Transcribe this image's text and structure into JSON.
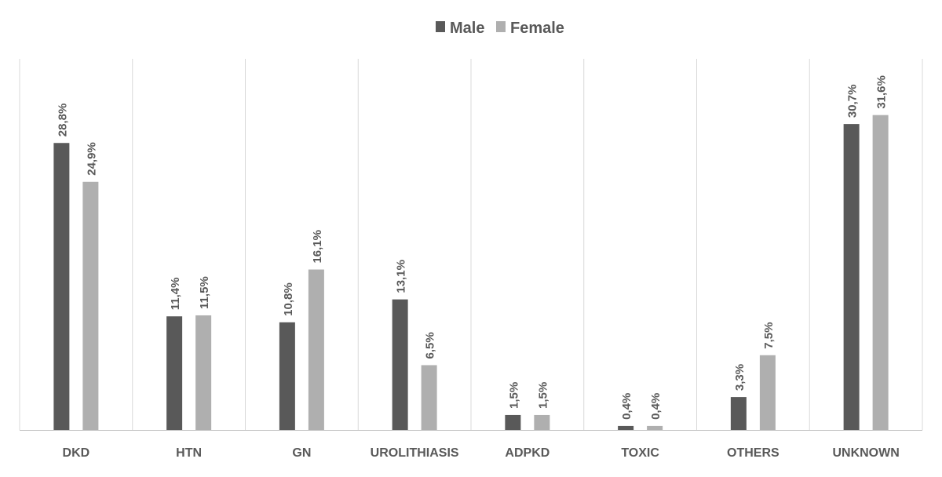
{
  "chart_data": {
    "type": "bar",
    "categories": [
      "DKD",
      "HTN",
      "GN",
      "UROLITHIASIS",
      "ADPKD",
      "TOXIC",
      "OTHERS",
      "UNKNOWN"
    ],
    "series": [
      {
        "name": "Male",
        "color": "#595959",
        "values": [
          28.8,
          11.4,
          10.8,
          13.1,
          1.5,
          0.4,
          3.3,
          30.7
        ],
        "labels": [
          "28,8%",
          "11,4%",
          "10,8%",
          "13,1%",
          "1,5%",
          "0,4%",
          "3,3%",
          "30,7%"
        ]
      },
      {
        "name": "Female",
        "color": "#afafaf",
        "values": [
          24.9,
          11.5,
          16.1,
          6.5,
          1.5,
          0.4,
          7.5,
          31.6
        ],
        "labels": [
          "24,9%",
          "11,5%",
          "16,1%",
          "6,5%",
          "1,5%",
          "0,4%",
          "7,5%",
          "31,6%"
        ]
      }
    ],
    "ylim": [
      0,
      35
    ],
    "legend": "top-center",
    "grid": "vertical category separators",
    "title": "",
    "xlabel": "",
    "ylabel": ""
  },
  "colors": {
    "label_text": "#595959",
    "gridline": "#d9d9d9",
    "axis": "#bfbfbf"
  }
}
